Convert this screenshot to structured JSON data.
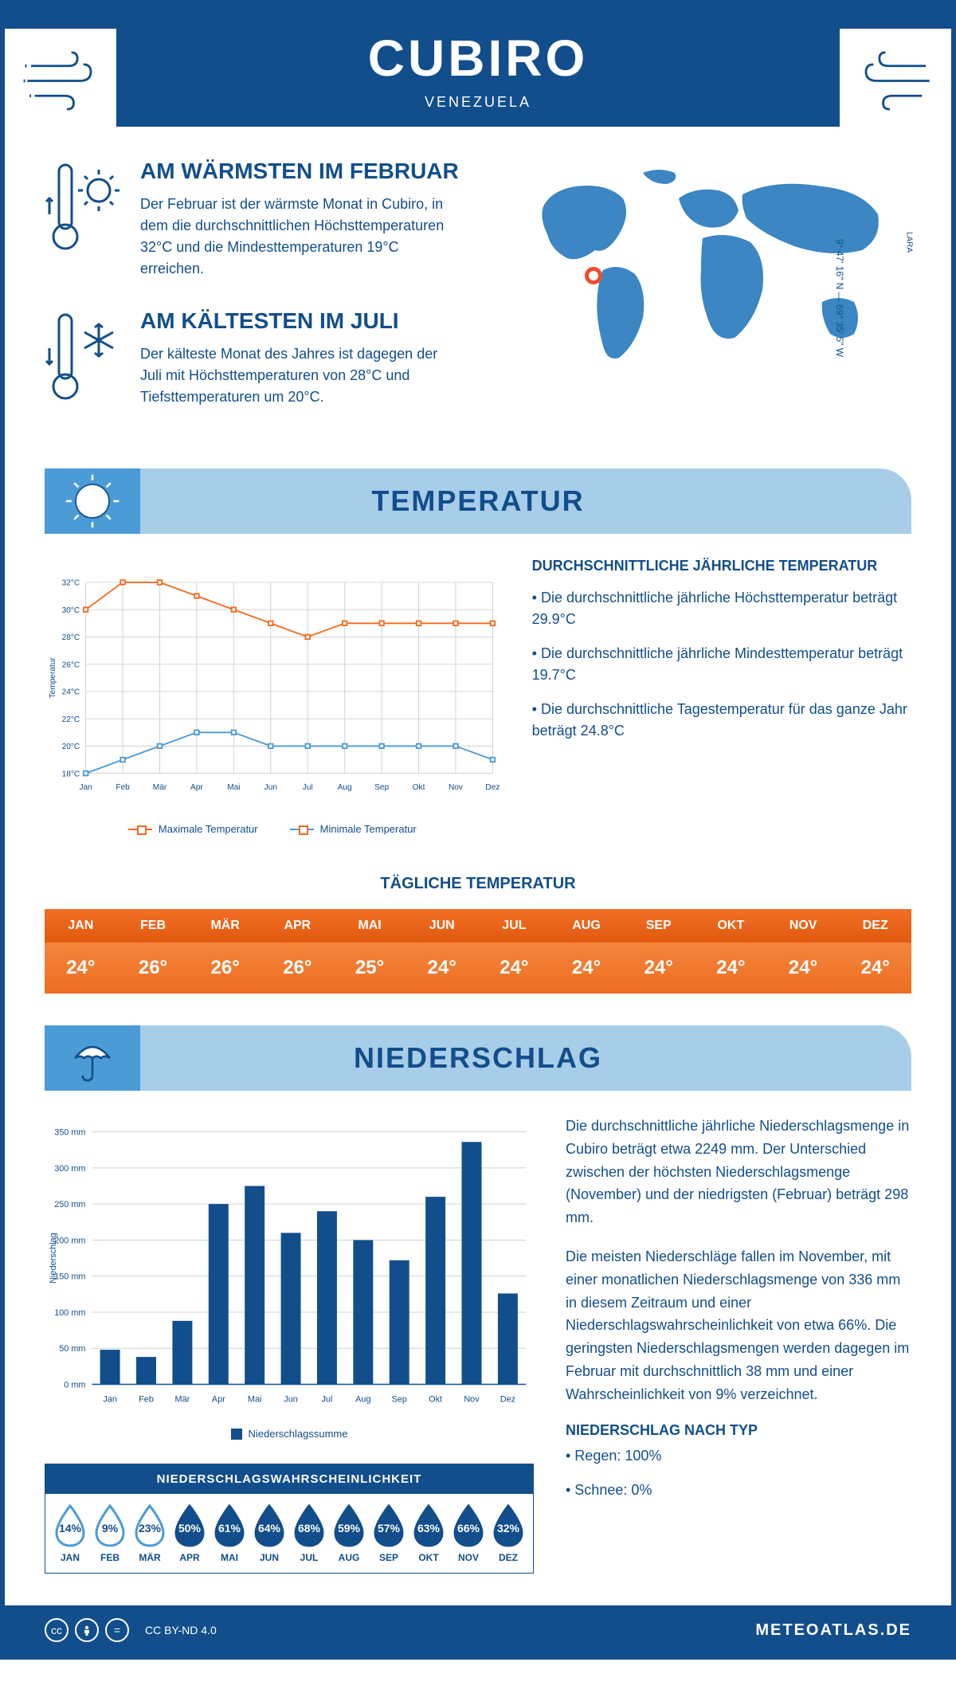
{
  "header": {
    "title": "CUBIRO",
    "subtitle": "VENEZUELA"
  },
  "coords": "9° 47' 16\" N — 69° 35' 5\" W",
  "region": "LARA",
  "facts": {
    "warmest": {
      "title": "AM WÄRMSTEN IM FEBRUAR",
      "text": "Der Februar ist der wärmste Monat in Cubiro, in dem die durchschnittlichen Höchsttemperaturen 32°C und die Mindesttemperaturen 19°C erreichen."
    },
    "coldest": {
      "title": "AM KÄLTESTEN IM JULI",
      "text": "Der kälteste Monat des Jahres ist dagegen der Juli mit Höchsttemperaturen von 28°C und Tiefsttemperaturen um 20°C."
    }
  },
  "temperature": {
    "section_title": "TEMPERATUR",
    "chart": {
      "months": [
        "Jan",
        "Feb",
        "Mär",
        "Apr",
        "Mai",
        "Jun",
        "Jul",
        "Aug",
        "Sep",
        "Okt",
        "Nov",
        "Dez"
      ],
      "max_series": [
        30,
        32,
        32,
        31,
        30,
        29,
        28,
        29,
        29,
        29,
        29,
        29
      ],
      "min_series": [
        18,
        19,
        20,
        21,
        21,
        20,
        20,
        20,
        20,
        20,
        20,
        19
      ],
      "ylim": [
        18,
        32
      ],
      "ytick_step": 2,
      "y_unit": "°C",
      "max_color": "#f36b21",
      "min_color": "#4b9bd6",
      "grid_color": "#d0d0d0",
      "bg": "#ffffff",
      "ylabel": "Temperatur",
      "label_fontsize": 11,
      "legend_max": "Maximale Temperatur",
      "legend_min": "Minimale Temperatur",
      "line_width": 2,
      "marker": "square",
      "marker_size": 6
    },
    "info": {
      "title": "DURCHSCHNITTLICHE JÄHRLICHE TEMPERATUR",
      "bullets": [
        "• Die durchschnittliche jährliche Höchsttemperatur beträgt 29.9°C",
        "• Die durchschnittliche jährliche Mindesttemperatur beträgt 19.7°C",
        "• Die durchschnittliche Tagestemperatur für das ganze Jahr beträgt 24.8°C"
      ]
    },
    "daily": {
      "title": "TÄGLICHE TEMPERATUR",
      "months": [
        "JAN",
        "FEB",
        "MÄR",
        "APR",
        "MAI",
        "JUN",
        "JUL",
        "AUG",
        "SEP",
        "OKT",
        "NOV",
        "DEZ"
      ],
      "values": [
        "24°",
        "26°",
        "26°",
        "26°",
        "25°",
        "24°",
        "24°",
        "24°",
        "24°",
        "24°",
        "24°",
        "24°"
      ],
      "head_bg": "#ec6516",
      "val_bg": "#f37b2f",
      "text_color": "#ffffff"
    }
  },
  "precipitation": {
    "section_title": "NIEDERSCHLAG",
    "chart": {
      "type": "bar",
      "months": [
        "Jan",
        "Feb",
        "Mär",
        "Apr",
        "Mai",
        "Jun",
        "Jul",
        "Aug",
        "Sep",
        "Okt",
        "Nov",
        "Dez"
      ],
      "values": [
        48,
        38,
        88,
        250,
        275,
        210,
        240,
        200,
        172,
        260,
        336,
        126
      ],
      "ylim": [
        0,
        350
      ],
      "ytick_step": 50,
      "y_unit": " mm",
      "bar_color": "#124e8b",
      "grid_color": "#d0d0d0",
      "ylabel": "Niederschlag",
      "label_fontsize": 11,
      "legend": "Niederschlagssumme",
      "bar_width": 0.55
    },
    "text1": "Die durchschnittliche jährliche Niederschlagsmenge in Cubiro beträgt etwa 2249 mm. Der Unterschied zwischen der höchsten Niederschlagsmenge (November) und der niedrigsten (Februar) beträgt 298 mm.",
    "text2": "Die meisten Niederschläge fallen im November, mit einer monatlichen Niederschlagsmenge von 336 mm in diesem Zeitraum und einer Niederschlagswahrscheinlichkeit von etwa 66%. Die geringsten Niederschlagsmengen werden dagegen im Februar mit durchschnittlich 38 mm und einer Wahrscheinlichkeit von 9% verzeichnet.",
    "type_title": "NIEDERSCHLAG NACH TYP",
    "type_bullets": [
      "• Regen: 100%",
      "• Schnee: 0%"
    ],
    "probability": {
      "title": "NIEDERSCHLAGSWAHRSCHEINLICHKEIT",
      "months": [
        "JAN",
        "FEB",
        "MÄR",
        "APR",
        "MAI",
        "JUN",
        "JUL",
        "AUG",
        "SEP",
        "OKT",
        "NOV",
        "DEZ"
      ],
      "values": [
        "14%",
        "9%",
        "23%",
        "50%",
        "61%",
        "64%",
        "68%",
        "59%",
        "57%",
        "63%",
        "66%",
        "32%"
      ],
      "outline_threshold": 25,
      "fill_color": "#124e8b",
      "outline_color": "#4b9bd6"
    }
  },
  "footer": {
    "license": "CC BY-ND 4.0",
    "brand": "METEOATLAS.DE"
  }
}
